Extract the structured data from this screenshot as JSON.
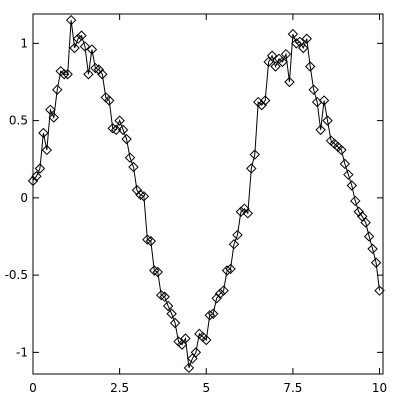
{
  "chart_data": {
    "type": "line",
    "color": "#000000",
    "marker": "diamond",
    "x": [
      0,
      0.1,
      0.2,
      0.3,
      0.4,
      0.5,
      0.6,
      0.7,
      0.8,
      0.9,
      1,
      1.1,
      1.2,
      1.3,
      1.4,
      1.5,
      1.6,
      1.7,
      1.8,
      1.9,
      2,
      2.1,
      2.2,
      2.3,
      2.4,
      2.5,
      2.6,
      2.7,
      2.8,
      2.9,
      3,
      3.1,
      3.2,
      3.3,
      3.4,
      3.5,
      3.6,
      3.7,
      3.8,
      3.9,
      4,
      4.1,
      4.2,
      4.3,
      4.4,
      4.5,
      4.6,
      4.7,
      4.8,
      4.9,
      5,
      5.1,
      5.2,
      5.3,
      5.4,
      5.5,
      5.6,
      5.7,
      5.8,
      5.9,
      6,
      6.1,
      6.2,
      6.3,
      6.4,
      6.5,
      6.6,
      6.7,
      6.8,
      6.9,
      7,
      7.1,
      7.2,
      7.3,
      7.4,
      7.5,
      7.6,
      7.7,
      7.8,
      7.9,
      8,
      8.1,
      8.2,
      8.3,
      8.4,
      8.5,
      8.6,
      8.7,
      8.8,
      8.9,
      9,
      9.1,
      9.2,
      9.3,
      9.4,
      9.5,
      9.6,
      9.7,
      9.8,
      9.9,
      10
    ],
    "values": [
      0.11,
      0.14,
      0.19,
      0.42,
      0.31,
      0.57,
      0.52,
      0.7,
      0.82,
      0.8,
      0.8,
      1.15,
      0.97,
      1.03,
      1.05,
      0.98,
      0.8,
      0.96,
      0.84,
      0.83,
      0.8,
      0.65,
      0.63,
      0.45,
      0.44,
      0.5,
      0.44,
      0.38,
      0.26,
      0.2,
      0.05,
      0.02,
      0.01,
      -0.27,
      -0.28,
      -0.47,
      -0.48,
      -0.63,
      -0.64,
      -0.7,
      -0.75,
      -0.81,
      -0.93,
      -0.95,
      -0.91,
      -1.1,
      -1.04,
      -1.0,
      -0.88,
      -0.9,
      -0.92,
      -0.76,
      -0.75,
      -0.65,
      -0.62,
      -0.6,
      -0.47,
      -0.46,
      -0.3,
      -0.24,
      -0.09,
      -0.07,
      -0.1,
      0.19,
      0.28,
      0.62,
      0.6,
      0.63,
      0.88,
      0.92,
      0.85,
      0.9,
      0.88,
      0.93,
      0.75,
      1.06,
      1.0,
      1.01,
      0.97,
      1.03,
      0.85,
      0.7,
      0.62,
      0.44,
      0.63,
      0.5,
      0.37,
      0.35,
      0.33,
      0.31,
      0.22,
      0.15,
      0.08,
      -0.02,
      -0.09,
      -0.12,
      -0.16,
      -0.25,
      -0.33,
      -0.42,
      -0.6
    ],
    "xlim": [
      0,
      10.1
    ],
    "ylim": [
      -1.14,
      1.19
    ],
    "xticks": [
      0,
      2.5,
      5,
      7.5,
      10
    ],
    "yticks": [
      -1,
      -0.5,
      0,
      0.5,
      1
    ]
  }
}
